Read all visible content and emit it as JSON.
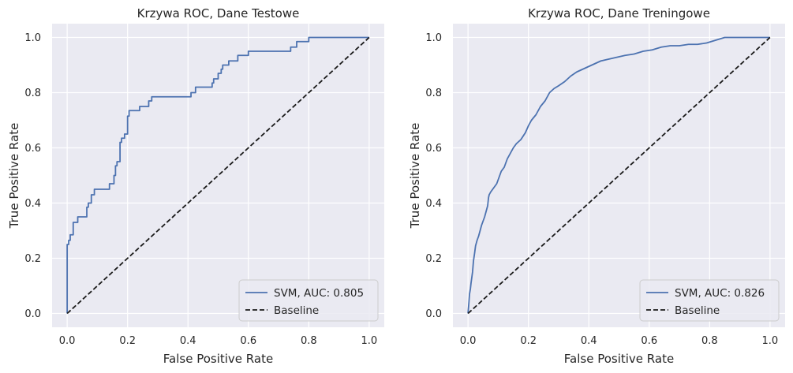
{
  "chart_data": [
    {
      "type": "line",
      "title": "Krzywa ROC, Dane Testowe",
      "xlabel": "False Positive Rate",
      "ylabel": "True Positive Rate",
      "xlim": [
        -0.05,
        1.05
      ],
      "ylim": [
        -0.05,
        1.05
      ],
      "xticks": [
        "0.0",
        "0.2",
        "0.4",
        "0.6",
        "0.8",
        "1.0"
      ],
      "yticks": [
        "0.0",
        "0.2",
        "0.4",
        "0.6",
        "0.8",
        "1.0"
      ],
      "grid": true,
      "legend_position": "lower-right",
      "series": [
        {
          "name": "SVM, AUC: 0.805",
          "color": "#4c72b0",
          "style": "solid",
          "x": [
            0.0,
            0.0,
            0.005,
            0.005,
            0.01,
            0.01,
            0.02,
            0.02,
            0.035,
            0.035,
            0.065,
            0.065,
            0.07,
            0.07,
            0.08,
            0.08,
            0.09,
            0.09,
            0.14,
            0.14,
            0.155,
            0.155,
            0.16,
            0.16,
            0.165,
            0.165,
            0.175,
            0.175,
            0.18,
            0.18,
            0.19,
            0.19,
            0.2,
            0.2,
            0.205,
            0.205,
            0.24,
            0.24,
            0.27,
            0.27,
            0.28,
            0.28,
            0.41,
            0.41,
            0.425,
            0.425,
            0.48,
            0.48,
            0.485,
            0.485,
            0.5,
            0.5,
            0.51,
            0.51,
            0.515,
            0.515,
            0.535,
            0.535,
            0.565,
            0.565,
            0.6,
            0.6,
            0.74,
            0.74,
            0.76,
            0.76,
            0.8,
            0.8,
            1.0
          ],
          "y": [
            0.0,
            0.25,
            0.25,
            0.265,
            0.265,
            0.285,
            0.285,
            0.33,
            0.33,
            0.35,
            0.35,
            0.385,
            0.385,
            0.4,
            0.4,
            0.43,
            0.43,
            0.45,
            0.45,
            0.47,
            0.47,
            0.5,
            0.5,
            0.535,
            0.535,
            0.55,
            0.55,
            0.62,
            0.62,
            0.635,
            0.635,
            0.65,
            0.65,
            0.715,
            0.715,
            0.735,
            0.735,
            0.75,
            0.75,
            0.77,
            0.77,
            0.785,
            0.785,
            0.8,
            0.8,
            0.82,
            0.82,
            0.835,
            0.835,
            0.85,
            0.85,
            0.87,
            0.87,
            0.885,
            0.885,
            0.9,
            0.9,
            0.915,
            0.915,
            0.935,
            0.935,
            0.95,
            0.95,
            0.965,
            0.965,
            0.985,
            0.985,
            1.0,
            1.0
          ]
        },
        {
          "name": "Baseline",
          "color": "#1a1a1a",
          "style": "dashed",
          "x": [
            0.0,
            1.0
          ],
          "y": [
            0.0,
            1.0
          ]
        }
      ]
    },
    {
      "type": "line",
      "title": "Krzywa ROC, Dane Treningowe",
      "xlabel": "False Positive Rate",
      "ylabel": "True Positive Rate",
      "xlim": [
        -0.05,
        1.05
      ],
      "ylim": [
        -0.05,
        1.05
      ],
      "xticks": [
        "0.0",
        "0.2",
        "0.4",
        "0.6",
        "0.8",
        "1.0"
      ],
      "yticks": [
        "0.0",
        "0.2",
        "0.4",
        "0.6",
        "0.8",
        "1.0"
      ],
      "grid": true,
      "legend_position": "lower-right",
      "series": [
        {
          "name": "SVM, AUC: 0.826",
          "color": "#4c72b0",
          "style": "solid",
          "x": [
            0.0,
            0.003,
            0.005,
            0.008,
            0.01,
            0.015,
            0.018,
            0.022,
            0.025,
            0.03,
            0.035,
            0.04,
            0.045,
            0.05,
            0.055,
            0.06,
            0.065,
            0.068,
            0.07,
            0.075,
            0.085,
            0.095,
            0.105,
            0.11,
            0.12,
            0.13,
            0.14,
            0.15,
            0.16,
            0.175,
            0.19,
            0.2,
            0.21,
            0.225,
            0.24,
            0.255,
            0.27,
            0.285,
            0.3,
            0.32,
            0.34,
            0.36,
            0.38,
            0.4,
            0.42,
            0.44,
            0.46,
            0.48,
            0.5,
            0.52,
            0.55,
            0.58,
            0.61,
            0.64,
            0.67,
            0.7,
            0.73,
            0.76,
            0.79,
            0.82,
            0.85,
            1.0
          ],
          "y": [
            0.0,
            0.04,
            0.07,
            0.09,
            0.11,
            0.15,
            0.19,
            0.22,
            0.245,
            0.265,
            0.28,
            0.3,
            0.32,
            0.335,
            0.35,
            0.37,
            0.39,
            0.42,
            0.43,
            0.44,
            0.455,
            0.47,
            0.5,
            0.515,
            0.53,
            0.56,
            0.58,
            0.6,
            0.615,
            0.63,
            0.655,
            0.68,
            0.7,
            0.72,
            0.75,
            0.77,
            0.8,
            0.815,
            0.825,
            0.84,
            0.86,
            0.875,
            0.885,
            0.895,
            0.905,
            0.915,
            0.92,
            0.925,
            0.93,
            0.935,
            0.94,
            0.95,
            0.955,
            0.965,
            0.97,
            0.97,
            0.975,
            0.975,
            0.98,
            0.99,
            1.0,
            1.0
          ]
        },
        {
          "name": "Baseline",
          "color": "#1a1a1a",
          "style": "dashed",
          "x": [
            0.0,
            1.0
          ],
          "y": [
            0.0,
            1.0
          ]
        }
      ]
    }
  ]
}
